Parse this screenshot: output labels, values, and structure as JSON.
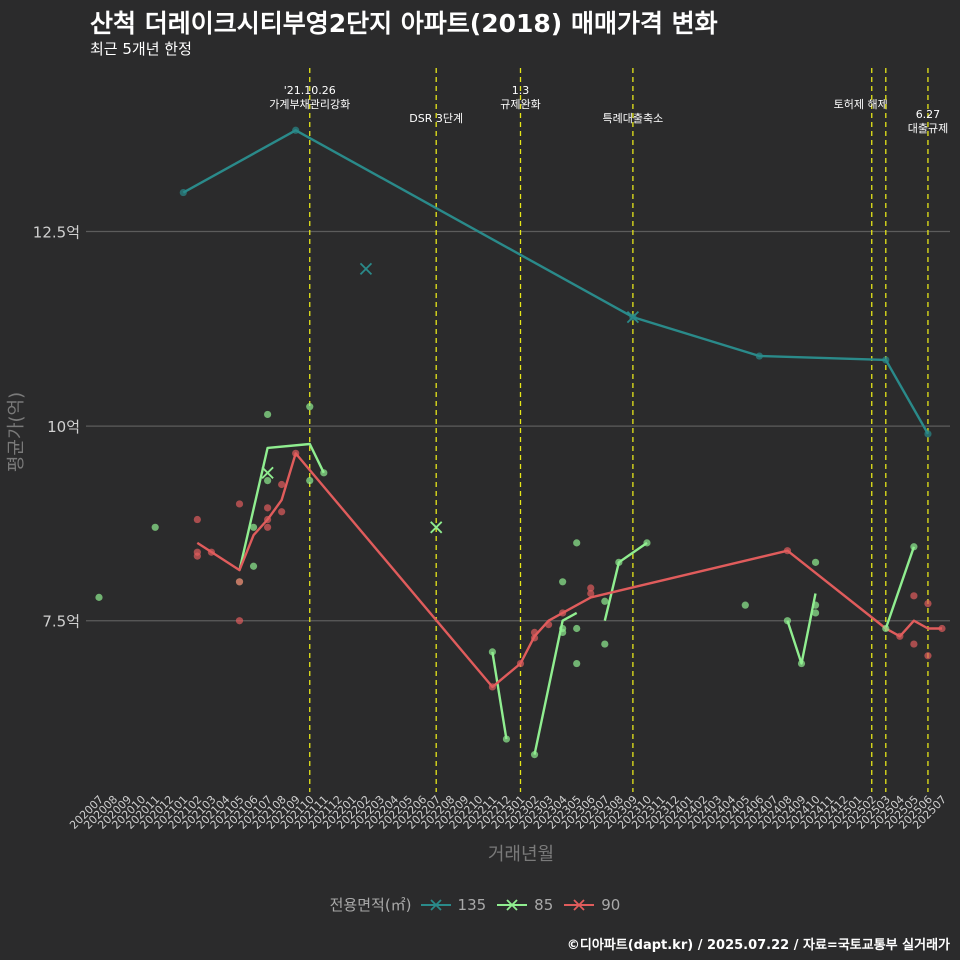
{
  "chart_data": {
    "type": "line",
    "title": "산척 더레이크시티부영2단지 아파트(2018) 매매가격 변화",
    "subtitle": "최근 5개년 한정",
    "xlabel": "거래년월",
    "ylabel": "평균가(억)",
    "caption": "©디아파트(dapt.kr) / 2025.07.22 / 자료=국토교통부 실거래가",
    "legend_title": "전용면적(㎡)",
    "ylim": [
      5.3,
      14.6
    ],
    "yticks": [
      {
        "value": 7.5,
        "label": "7.5억"
      },
      {
        "value": 10,
        "label": "10억"
      },
      {
        "value": 12.5,
        "label": "12.5억"
      }
    ],
    "x_start": "2020-07",
    "x_end": "2025-07",
    "categories": [
      "202007",
      "202008",
      "202009",
      "202010",
      "202011",
      "202012",
      "202101",
      "202102",
      "202103",
      "202104",
      "202105",
      "202106",
      "202107",
      "202108",
      "202109",
      "202110",
      "202111",
      "202112",
      "202201",
      "202202",
      "202203",
      "202204",
      "202205",
      "202206",
      "202207",
      "202208",
      "202209",
      "202210",
      "202211",
      "202212",
      "202301",
      "202302",
      "202303",
      "202304",
      "202305",
      "202306",
      "202307",
      "202308",
      "202309",
      "202310",
      "202311",
      "202312",
      "202401",
      "202402",
      "202403",
      "202404",
      "202405",
      "202406",
      "202407",
      "202408",
      "202409",
      "202410",
      "202411",
      "202412",
      "202501",
      "202502",
      "202503",
      "202504",
      "202505",
      "202506",
      "202507"
    ],
    "events": [
      {
        "month": 15,
        "label": "'21.10.26\n가계부채관리강화",
        "level": 0
      },
      {
        "month": 24,
        "label": "DSR 3단계",
        "level": 2
      },
      {
        "month": 30,
        "label": "1.3\n규제완화",
        "level": 0
      },
      {
        "month": 38,
        "label": "특례대출축소",
        "level": 2
      },
      {
        "month": 55,
        "label": "토허제 해제",
        "level": 1,
        "anchor": "right"
      },
      {
        "month": 56,
        "label": "",
        "level": 1
      },
      {
        "month": 59,
        "label": "6.27\n대출규제",
        "level": 1.7
      }
    ],
    "series": [
      {
        "name": "135",
        "color": "#2a8a8a",
        "line": [
          [
            6,
            13.0
          ],
          [
            14,
            13.8
          ],
          [
            38,
            11.4
          ],
          [
            47,
            10.9
          ],
          [
            56,
            10.85
          ],
          [
            59,
            9.9
          ]
        ],
        "points": [
          [
            6,
            13.0
          ],
          [
            14,
            13.8
          ],
          [
            38,
            11.4
          ],
          [
            47,
            10.9
          ],
          [
            56,
            10.85
          ],
          [
            59,
            9.9
          ]
        ],
        "crosses": [
          [
            19,
            12.02
          ],
          [
            38,
            11.4
          ]
        ]
      },
      {
        "name": "85",
        "color": "#90ee90",
        "line_segments": [
          [
            [
              10,
              8.15
            ],
            [
              12,
              9.72
            ],
            [
              15,
              9.77
            ],
            [
              16,
              9.4
            ]
          ],
          [
            [
              28,
              7.1
            ],
            [
              29,
              5.98
            ]
          ],
          [
            [
              31,
              5.78
            ],
            [
              33,
              7.5
            ],
            [
              34,
              7.6
            ]
          ],
          [
            [
              36,
              7.5
            ],
            [
              37,
              8.25
            ],
            [
              39,
              8.5
            ]
          ],
          [
            [
              49,
              7.5
            ],
            [
              50,
              6.95
            ],
            [
              51,
              7.85
            ]
          ],
          [
            [
              56,
              7.4
            ],
            [
              58,
              8.45
            ]
          ]
        ],
        "points": [
          [
            0,
            7.8
          ],
          [
            4,
            8.7
          ],
          [
            10,
            8.0
          ],
          [
            11,
            8.7
          ],
          [
            11,
            8.2
          ],
          [
            12,
            9.3
          ],
          [
            12,
            10.15
          ],
          [
            15,
            10.25
          ],
          [
            15,
            9.3
          ],
          [
            16,
            9.4
          ],
          [
            28,
            7.1
          ],
          [
            29,
            5.98
          ],
          [
            31,
            5.78
          ],
          [
            33,
            8.0
          ],
          [
            33,
            7.4
          ],
          [
            33,
            7.35
          ],
          [
            34,
            8.5
          ],
          [
            34,
            7.4
          ],
          [
            34,
            6.95
          ],
          [
            36,
            7.75
          ],
          [
            36,
            7.2
          ],
          [
            37,
            8.25
          ],
          [
            39,
            8.5
          ],
          [
            46,
            7.7
          ],
          [
            49,
            7.5
          ],
          [
            50,
            6.95
          ],
          [
            51,
            7.7
          ],
          [
            51,
            7.6
          ],
          [
            51,
            8.25
          ],
          [
            56,
            7.4
          ],
          [
            58,
            8.45
          ]
        ],
        "crosses": [
          [
            12,
            9.4
          ],
          [
            24,
            8.7
          ]
        ]
      },
      {
        "name": "90",
        "color": "#e05c5c",
        "line": [
          [
            7,
            8.5
          ],
          [
            10,
            8.15
          ],
          [
            11,
            8.6
          ],
          [
            12,
            8.8
          ],
          [
            13,
            9.05
          ],
          [
            14,
            9.65
          ],
          [
            28,
            6.65
          ],
          [
            30,
            6.95
          ],
          [
            31,
            7.3
          ],
          [
            32,
            7.5
          ],
          [
            33,
            7.6
          ],
          [
            35,
            7.8
          ],
          [
            49,
            8.4
          ],
          [
            56,
            7.4
          ],
          [
            57,
            7.3
          ],
          [
            58,
            7.5
          ],
          [
            59,
            7.4
          ],
          [
            60,
            7.4
          ]
        ],
        "points": [
          [
            7,
            8.8
          ],
          [
            7,
            8.38
          ],
          [
            7,
            8.33
          ],
          [
            8,
            8.38
          ],
          [
            10,
            7.5
          ],
          [
            10,
            9.0
          ],
          [
            10,
            8.0
          ],
          [
            12,
            8.95
          ],
          [
            12,
            8.8
          ],
          [
            12,
            8.7
          ],
          [
            13,
            9.25
          ],
          [
            13,
            8.9
          ],
          [
            14,
            9.65
          ],
          [
            28,
            6.65
          ],
          [
            30,
            6.95
          ],
          [
            31,
            7.35
          ],
          [
            31,
            7.28
          ],
          [
            32,
            7.45
          ],
          [
            33,
            7.6
          ],
          [
            35,
            7.92
          ],
          [
            35,
            7.85
          ],
          [
            49,
            8.4
          ],
          [
            57,
            7.3
          ],
          [
            58,
            7.2
          ],
          [
            58,
            7.82
          ],
          [
            59,
            7.72
          ],
          [
            59,
            7.05
          ],
          [
            60,
            7.4
          ]
        ],
        "crosses": []
      }
    ]
  }
}
